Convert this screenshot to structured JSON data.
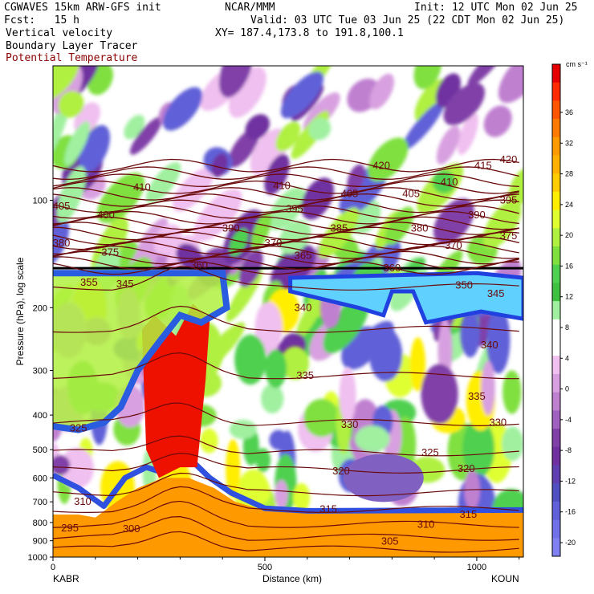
{
  "header": {
    "model": "CGWAVES 15km ARW-GFS init",
    "org": "NCAR/MMM",
    "init": "Init: 12 UTC Mon 02 Jun 25",
    "fcst": "Fcst:   15 h",
    "valid": "Valid: 03 UTC Tue 03 Jun 25 (22 CDT Mon 02 Jun 25)",
    "field1": "Vertical velocity",
    "xy": "XY= 187.4,173.8 to 191.8,100.1",
    "field2": "Boundary Layer Tracer",
    "field3": "Potential Temperature"
  },
  "colors": {
    "theta_contour": "#6a0a0a",
    "tropopause": "#000000",
    "field3_label": "#8b0000"
  },
  "chart_data": {
    "type": "heatmap",
    "title": "Vertical velocity",
    "xlabel": "Distance (km)",
    "ylabel": "Pressure (hPa), log scale",
    "xlim": [
      0,
      1110
    ],
    "x_ticks": [
      "0",
      "500",
      "1000"
    ],
    "endpoint_left": "KABR",
    "endpoint_right": "KOUN",
    "y_scale": "log",
    "y_ticks": [
      "100",
      "200",
      "300",
      "400",
      "500",
      "600",
      "700",
      "800",
      "900",
      "1000"
    ],
    "colorbar": {
      "unit": "cm s⁻¹",
      "tick_labels": [
        "36",
        "32",
        "28",
        "24",
        "20",
        "16",
        "12",
        "8",
        "4",
        "0",
        "-4",
        "-8",
        "-12",
        "-16",
        "-20"
      ],
      "colors": [
        "#e60000",
        "#ff2a00",
        "#ff5500",
        "#ff7a00",
        "#ff9900",
        "#ffb000",
        "#ffcc00",
        "#ffee00",
        "#e0ff30",
        "#b0f040",
        "#80e040",
        "#50d050",
        "#40c040",
        "#a0f0a0",
        "#ffffff",
        "#ffffff",
        "#f0c0f0",
        "#d8a0e0",
        "#c080d0",
        "#a060c0",
        "#8040a8",
        "#7030a0",
        "#6040b0",
        "#5050c0",
        "#6060d8",
        "#7070e8",
        "#8080f0"
      ]
    },
    "theta_contour_labels": [
      {
        "label": "420",
        "x": 775,
        "p": 80
      },
      {
        "label": "420",
        "x": 1075,
        "p": 77
      },
      {
        "label": "415",
        "x": 1015,
        "p": 80
      },
      {
        "label": "410",
        "x": 210,
        "p": 92
      },
      {
        "label": "410",
        "x": 540,
        "p": 91
      },
      {
        "label": "410",
        "x": 935,
        "p": 89
      },
      {
        "label": "405",
        "x": 20,
        "p": 104
      },
      {
        "label": "405",
        "x": 700,
        "p": 96
      },
      {
        "label": "405",
        "x": 845,
        "p": 96
      },
      {
        "label": "400",
        "x": 125,
        "p": 110
      },
      {
        "label": "395",
        "x": 570,
        "p": 106
      },
      {
        "label": "395",
        "x": 1075,
        "p": 100
      },
      {
        "label": "390",
        "x": 420,
        "p": 120
      },
      {
        "label": "390",
        "x": 1000,
        "p": 110
      },
      {
        "label": "385",
        "x": 675,
        "p": 120
      },
      {
        "label": "380",
        "x": 20,
        "p": 132
      },
      {
        "label": "380",
        "x": 865,
        "p": 120
      },
      {
        "label": "375",
        "x": 135,
        "p": 140
      },
      {
        "label": "375",
        "x": 1075,
        "p": 126
      },
      {
        "label": "370",
        "x": 520,
        "p": 132
      },
      {
        "label": "370",
        "x": 945,
        "p": 134
      },
      {
        "label": "365",
        "x": 590,
        "p": 143
      },
      {
        "label": "360",
        "x": 345,
        "p": 152
      },
      {
        "label": "360",
        "x": 800,
        "p": 155
      },
      {
        "label": "355",
        "x": 85,
        "p": 170
      },
      {
        "label": "345",
        "x": 170,
        "p": 172
      },
      {
        "label": "350",
        "x": 970,
        "p": 173
      },
      {
        "label": "345",
        "x": 1045,
        "p": 183
      },
      {
        "label": "340",
        "x": 590,
        "p": 200
      },
      {
        "label": "340",
        "x": 1030,
        "p": 255
      },
      {
        "label": "335",
        "x": 595,
        "p": 310
      },
      {
        "label": "335",
        "x": 1000,
        "p": 355
      },
      {
        "label": "330",
        "x": 700,
        "p": 425
      },
      {
        "label": "330",
        "x": 1050,
        "p": 420
      },
      {
        "label": "325",
        "x": 60,
        "p": 435
      },
      {
        "label": "325",
        "x": 890,
        "p": 510
      },
      {
        "label": "320",
        "x": 680,
        "p": 575
      },
      {
        "label": "320",
        "x": 975,
        "p": 565
      },
      {
        "label": "315",
        "x": 650,
        "p": 735
      },
      {
        "label": "315",
        "x": 980,
        "p": 760
      },
      {
        "label": "310",
        "x": 70,
        "p": 700
      },
      {
        "label": "310",
        "x": 880,
        "p": 810
      },
      {
        "label": "305",
        "x": 795,
        "p": 905
      },
      {
        "label": "300",
        "x": 185,
        "p": 835
      },
      {
        "label": "295",
        "x": 40,
        "p": 830
      }
    ]
  }
}
